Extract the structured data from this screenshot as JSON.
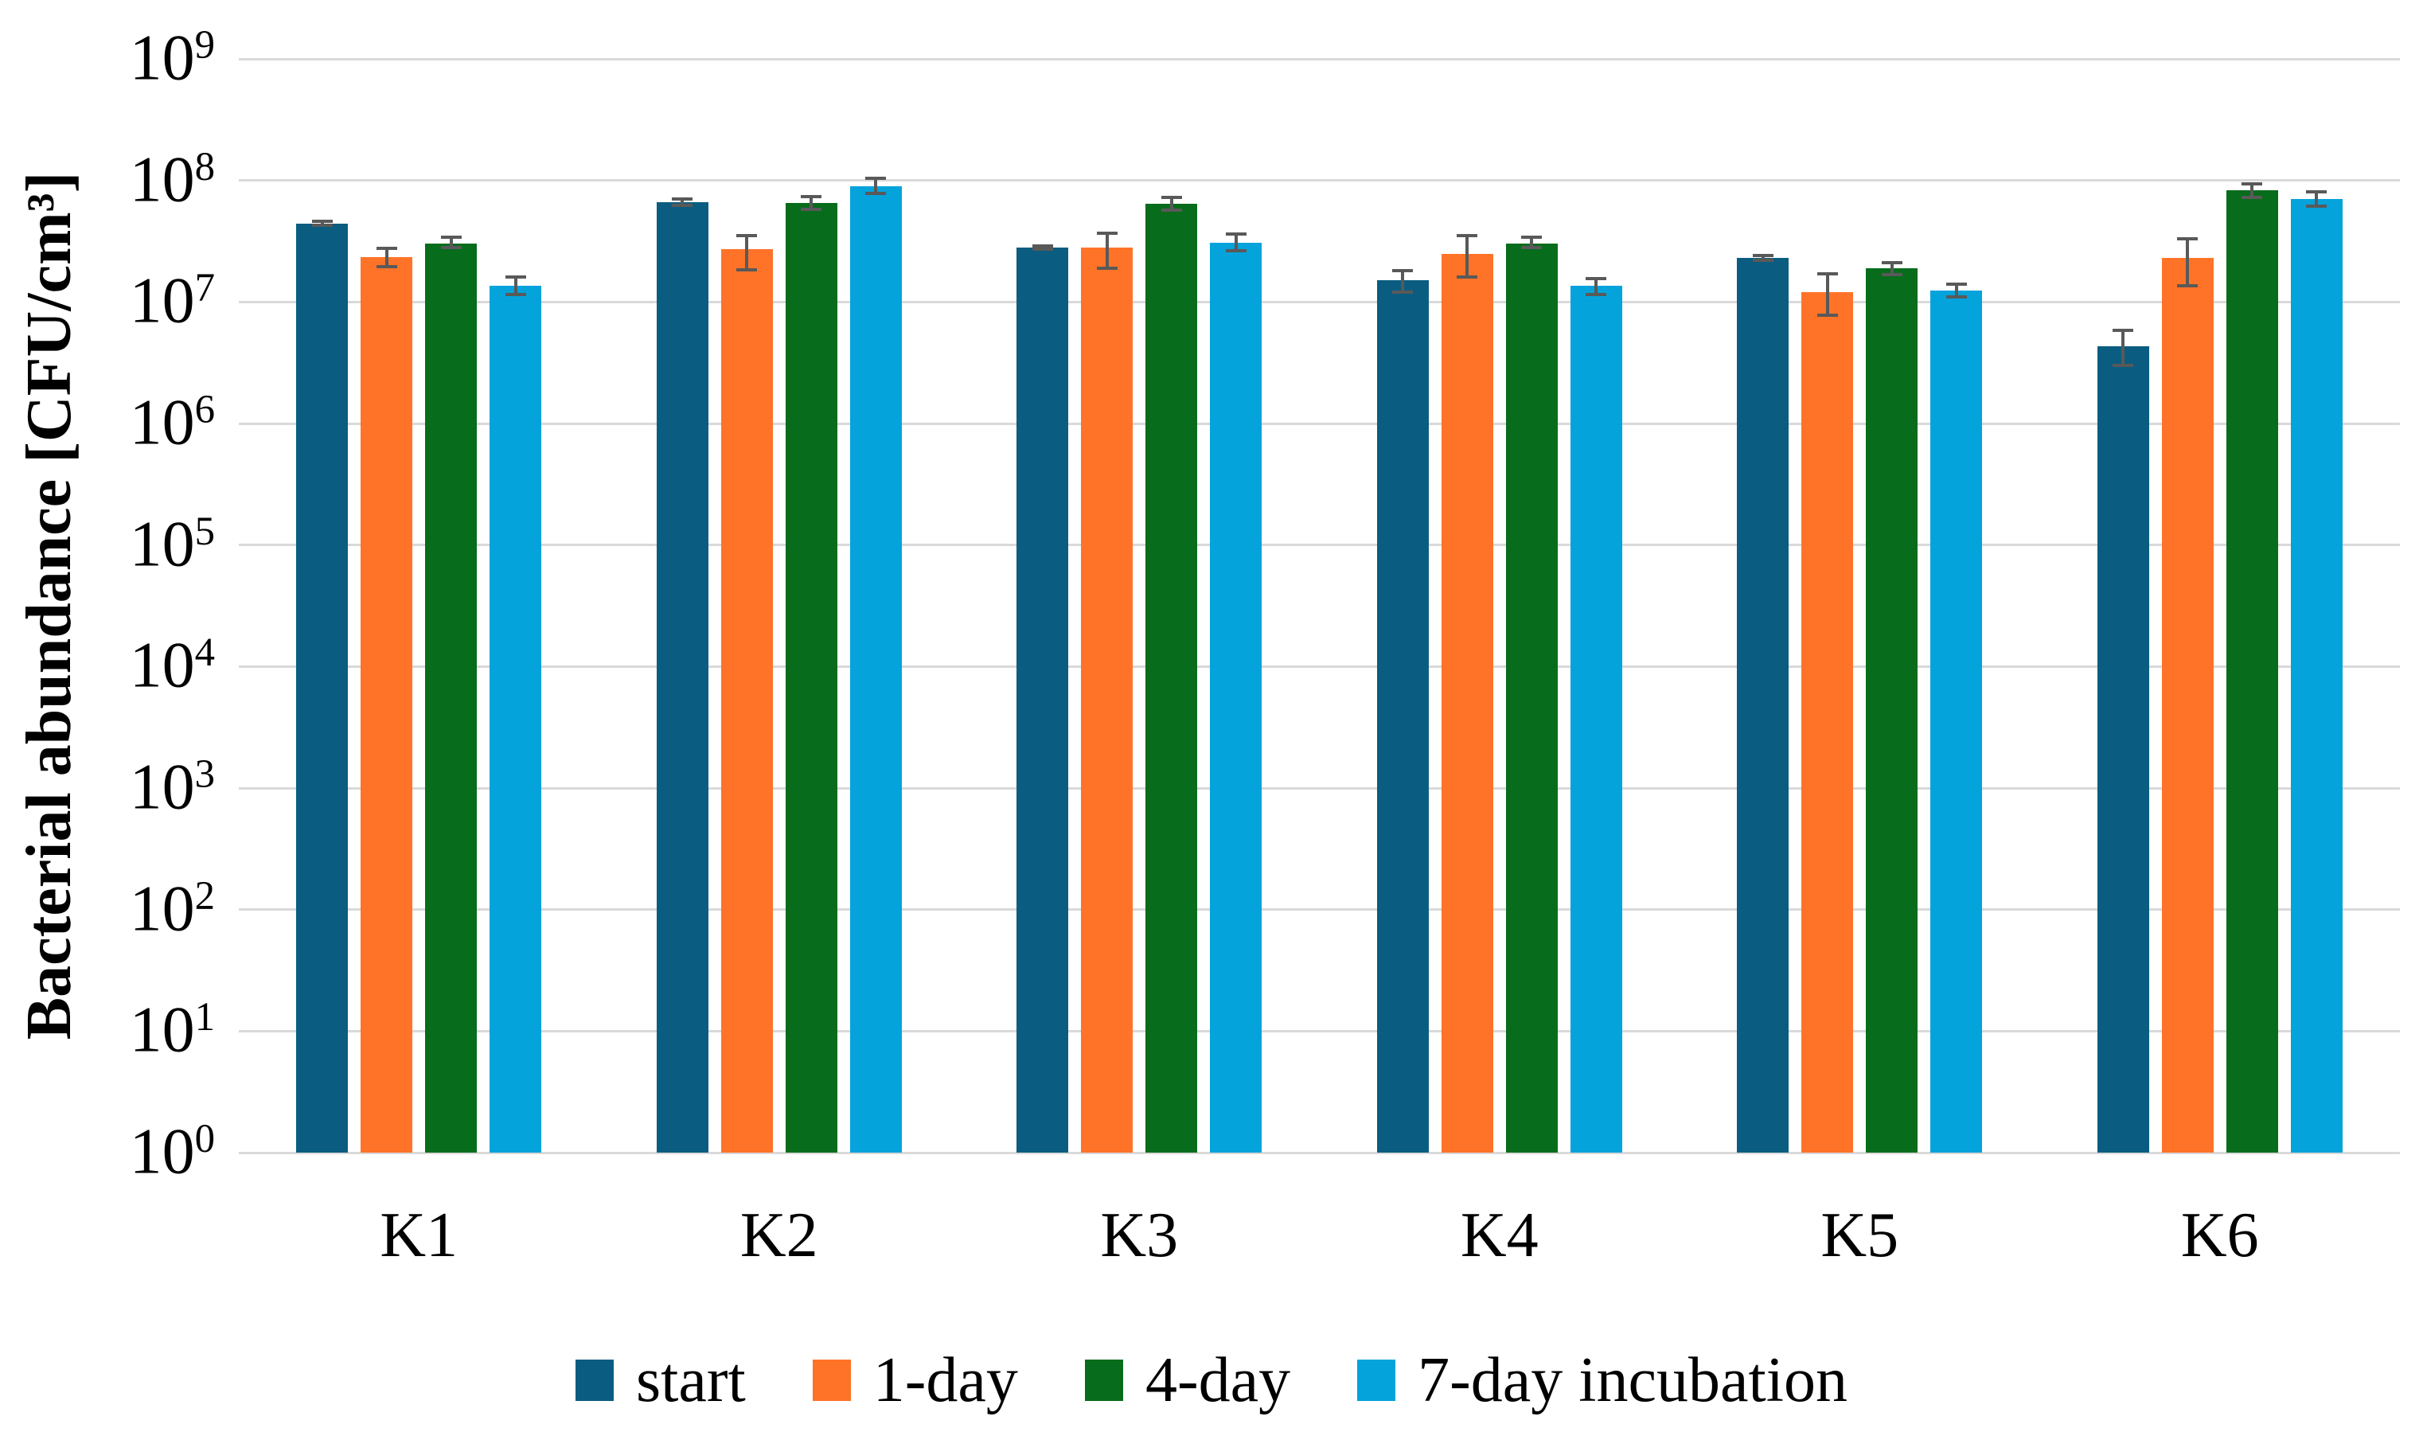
{
  "figure": {
    "background": "#FFFFFF"
  },
  "chart_data": {
    "type": "bar",
    "y_scale": "log10",
    "title": "",
    "xlabel": "",
    "ylabel": "Bacterial abundance [CFU/cm³]",
    "ylim": [
      1,
      1000000000
    ],
    "y_tick_base": "10",
    "y_tick_exponents": [
      9,
      8,
      7,
      6,
      5,
      4,
      3,
      2,
      1,
      0
    ],
    "grid": true,
    "legend": {
      "position": "bottom",
      "labels": [
        "start",
        "1-day",
        "4-day",
        "7-day incubation"
      ]
    },
    "categories": [
      "K1",
      "K2",
      "K3",
      "K4",
      "K5",
      "K6"
    ],
    "series": [
      {
        "name": "start",
        "color": "#0A5D80",
        "values": [
          44000000,
          66000000,
          28000000,
          15000000,
          23000000,
          4300000
        ],
        "err_low": [
          43000000,
          62000000,
          27000000,
          12000000,
          22000000,
          3000000
        ],
        "err_high": [
          46000000,
          70000000,
          29000000,
          18000000,
          24000000,
          5800000
        ]
      },
      {
        "name": "1-day",
        "color": "#FF7328",
        "values": [
          23500000,
          27000000,
          28000000,
          25000000,
          12000000,
          23000000
        ],
        "err_low": [
          19500000,
          18500000,
          19000000,
          16000000,
          7800000,
          13500000
        ],
        "err_high": [
          27500000,
          35000000,
          37000000,
          35000000,
          17000000,
          33000000
        ]
      },
      {
        "name": "4-day",
        "color": "#076C1B",
        "values": [
          30000000,
          65000000,
          64000000,
          30000000,
          19000000,
          83000000
        ],
        "err_low": [
          28000000,
          58000000,
          57000000,
          28000000,
          16700000,
          73000000
        ],
        "err_high": [
          34000000,
          74000000,
          72000000,
          34000000,
          21000000,
          94000000
        ]
      },
      {
        "name": "7-day incubation",
        "color": "#05A3DC",
        "values": [
          13500000,
          90000000,
          30500000,
          13500000,
          12500000,
          70000000
        ],
        "err_low": [
          11500000,
          78000000,
          26500000,
          11500000,
          11000000,
          61000000
        ],
        "err_high": [
          16000000,
          104000000,
          36000000,
          15500000,
          14000000,
          80000000
        ]
      }
    ],
    "colors": {
      "gridline": "#D9D9D9",
      "error_bar": "#595959",
      "text": "#000000"
    }
  }
}
